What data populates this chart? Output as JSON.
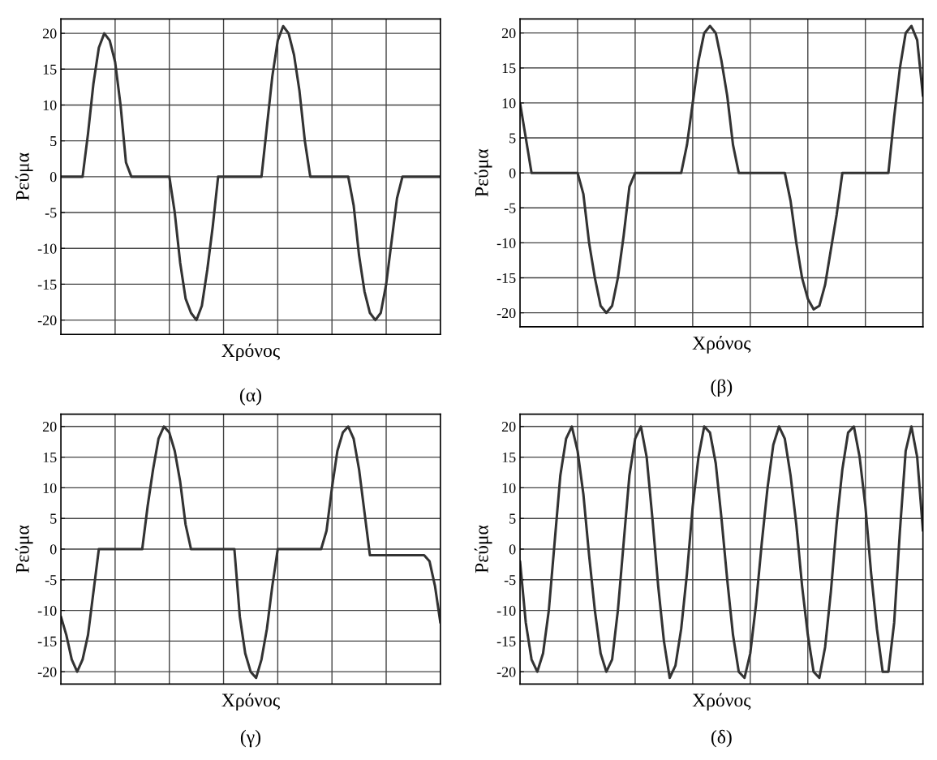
{
  "chart_data": [
    {
      "type": "line",
      "xlabel": "Χρόνος",
      "ylabel": "Ρεύμα",
      "annotations": [
        "(α)"
      ],
      "ylim": [
        -22,
        22
      ],
      "yticks": [
        -20,
        -15,
        -10,
        -5,
        0,
        5,
        10,
        15,
        20
      ],
      "grid": true,
      "tick_labels": "y",
      "categories": [
        null,
        null,
        null,
        null,
        null,
        null,
        null,
        null,
        null,
        null,
        null,
        null,
        null,
        null,
        null,
        null,
        null,
        null,
        null,
        null,
        null,
        null,
        null,
        null,
        null,
        null,
        null,
        null,
        null,
        null,
        null,
        null,
        null,
        null,
        null,
        null,
        null,
        null,
        null,
        null,
        null,
        null,
        null,
        null,
        null,
        null,
        null,
        null,
        null,
        null,
        null,
        null,
        null,
        null,
        null,
        null,
        null,
        null,
        null,
        null,
        null,
        null,
        null,
        null,
        null,
        null,
        null,
        null,
        null,
        null,
        null
      ],
      "series": [
        {
          "color": "#333333",
          "values": [
            0,
            0,
            0,
            0,
            0,
            6,
            13,
            18,
            20,
            19,
            16,
            10,
            2,
            0,
            0,
            0,
            0,
            0,
            0,
            0,
            0,
            -5,
            -12,
            -17,
            -19,
            -20,
            -18,
            -13,
            -7,
            0,
            0,
            0,
            0,
            0,
            0,
            0,
            0,
            0,
            7,
            14,
            19,
            21,
            20,
            17,
            12,
            5,
            0,
            0,
            0,
            0,
            0,
            0,
            0,
            0,
            -4,
            -11,
            -16,
            -19,
            -20,
            -19,
            -15,
            -9,
            -3,
            0,
            0,
            0,
            0,
            0,
            0,
            0,
            0
          ]
        }
      ]
    },
    {
      "type": "line",
      "xlabel": "Χρόνος",
      "ylabel": "Ρεύμα",
      "annotations": [
        "(β)"
      ],
      "ylim": [
        -22,
        22
      ],
      "yticks": [
        -20,
        -15,
        -10,
        -5,
        0,
        5,
        10,
        15,
        20
      ],
      "grid": true,
      "tick_labels": "y",
      "categories": [
        null,
        null,
        null,
        null,
        null,
        null,
        null,
        null,
        null,
        null,
        null,
        null,
        null,
        null,
        null,
        null,
        null,
        null,
        null,
        null,
        null,
        null,
        null,
        null,
        null,
        null,
        null,
        null,
        null,
        null,
        null,
        null,
        null,
        null,
        null,
        null,
        null,
        null,
        null,
        null,
        null,
        null,
        null,
        null,
        null,
        null,
        null,
        null,
        null,
        null,
        null,
        null,
        null,
        null,
        null,
        null,
        null,
        null,
        null,
        null,
        null,
        null,
        null,
        null,
        null,
        null,
        null,
        null,
        null,
        null,
        null
      ],
      "series": [
        {
          "color": "#333333",
          "values": [
            10,
            5,
            0,
            0,
            0,
            0,
            0,
            0,
            0,
            0,
            0,
            -3,
            -10,
            -15,
            -19,
            -20,
            -19,
            -15,
            -9,
            -2,
            0,
            0,
            0,
            0,
            0,
            0,
            0,
            0,
            0,
            4,
            10,
            16,
            20,
            21,
            20,
            16,
            11,
            4,
            0,
            0,
            0,
            0,
            0,
            0,
            0,
            0,
            0,
            -4,
            -10,
            -15,
            -18,
            -19.5,
            -19,
            -16,
            -11,
            -6,
            0,
            0,
            0,
            0,
            0,
            0,
            0,
            0,
            0,
            8,
            15,
            20,
            21,
            19,
            11
          ]
        }
      ]
    },
    {
      "type": "line",
      "xlabel": "Χρόνος",
      "ylabel": "Ρεύμα",
      "annotations": [
        "(γ)"
      ],
      "ylim": [
        -22,
        22
      ],
      "yticks": [
        -20,
        -15,
        -10,
        -5,
        0,
        5,
        10,
        15,
        20
      ],
      "grid": true,
      "tick_labels": "y",
      "categories": [
        null,
        null,
        null,
        null,
        null,
        null,
        null,
        null,
        null,
        null,
        null,
        null,
        null,
        null,
        null,
        null,
        null,
        null,
        null,
        null,
        null,
        null,
        null,
        null,
        null,
        null,
        null,
        null,
        null,
        null,
        null,
        null,
        null,
        null,
        null,
        null,
        null,
        null,
        null,
        null,
        null,
        null,
        null,
        null,
        null,
        null,
        null,
        null,
        null,
        null,
        null,
        null,
        null,
        null,
        null,
        null,
        null,
        null,
        null,
        null,
        null,
        null,
        null,
        null,
        null,
        null,
        null,
        null,
        null,
        null,
        null
      ],
      "series": [
        {
          "color": "#333333",
          "values": [
            -11,
            -14,
            -18,
            -20,
            -18,
            -14,
            -7,
            0,
            0,
            0,
            0,
            0,
            0,
            0,
            0,
            0,
            7,
            13,
            18,
            20,
            19,
            16,
            11,
            4,
            0,
            0,
            0,
            0,
            0,
            0,
            0,
            0,
            0,
            -11,
            -17,
            -20,
            -21,
            -18,
            -13,
            -6,
            0,
            0,
            0,
            0,
            0,
            0,
            0,
            0,
            0,
            3,
            10,
            16,
            19,
            20,
            18,
            13,
            6,
            -1,
            -1,
            -1,
            -1,
            -1,
            -1,
            -1,
            -1,
            -1,
            -1,
            -1,
            -2,
            -6,
            -12
          ]
        }
      ]
    },
    {
      "type": "line",
      "xlabel": "Χρόνος",
      "ylabel": "Ρεύμα",
      "annotations": [
        "(δ)"
      ],
      "ylim": [
        -22,
        22
      ],
      "yticks": [
        -20,
        -15,
        -10,
        -5,
        0,
        5,
        10,
        15,
        20
      ],
      "grid": true,
      "tick_labels": "y",
      "categories": [
        null,
        null,
        null,
        null,
        null,
        null,
        null,
        null,
        null,
        null,
        null,
        null,
        null,
        null,
        null,
        null,
        null,
        null,
        null,
        null,
        null,
        null,
        null,
        null,
        null,
        null,
        null,
        null,
        null,
        null,
        null,
        null,
        null,
        null,
        null,
        null,
        null,
        null,
        null,
        null,
        null,
        null,
        null,
        null,
        null,
        null,
        null,
        null,
        null,
        null,
        null,
        null,
        null,
        null,
        null,
        null,
        null,
        null,
        null,
        null,
        null,
        null,
        null,
        null,
        null,
        null,
        null,
        null,
        null,
        null,
        null
      ],
      "series": [
        {
          "color": "#333333",
          "values": [
            -2,
            -12,
            -18,
            -20,
            -17,
            -10,
            1,
            12,
            18,
            20,
            16,
            9,
            -1,
            -10,
            -17,
            -20,
            -18,
            -10,
            1,
            12,
            18,
            20,
            15,
            5,
            -6,
            -15,
            -21,
            -19,
            -13,
            -4,
            7,
            15,
            20,
            19,
            14,
            5,
            -5,
            -14,
            -20,
            -21,
            -17,
            -9,
            1,
            10,
            17,
            20,
            18,
            12,
            4,
            -6,
            -14,
            -20,
            -21,
            -16,
            -7,
            4,
            13,
            19,
            20,
            15,
            7,
            -4,
            -13,
            -20,
            -20,
            -12,
            3,
            16,
            20,
            15,
            3
          ]
        }
      ]
    }
  ]
}
